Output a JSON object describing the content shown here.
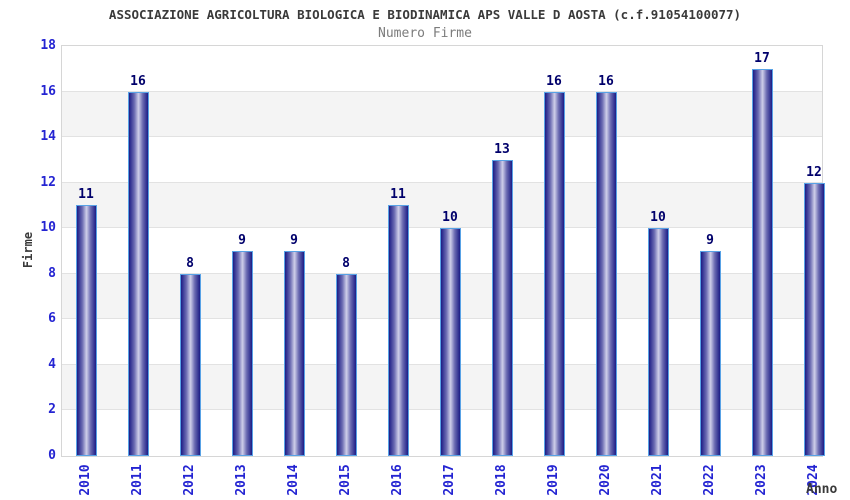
{
  "chart_data": {
    "type": "bar",
    "title": "ASSOCIAZIONE AGRICOLTURA BIOLOGICA E BIODINAMICA APS VALLE D AOSTA (c.f.91054100077)",
    "subtitle": "Numero Firme",
    "xlabel": "Anno",
    "ylabel": "Firme",
    "categories": [
      "2010",
      "2011",
      "2012",
      "2013",
      "2014",
      "2015",
      "2016",
      "2017",
      "2018",
      "2019",
      "2020",
      "2021",
      "2022",
      "2023",
      "2024"
    ],
    "values": [
      11,
      16,
      8,
      9,
      9,
      8,
      11,
      10,
      13,
      16,
      16,
      10,
      9,
      17,
      12
    ],
    "ylim": [
      0,
      18
    ],
    "yticks": [
      0,
      2,
      4,
      6,
      8,
      10,
      12,
      14,
      16,
      18
    ],
    "grid": "horizontal-bands",
    "legend": "none",
    "colors": {
      "bar_edge": "#58a2e6",
      "bar_dark": "#1c1c85",
      "bar_mid": "#6b6bb2",
      "bar_light": "#cfcfe9",
      "value_label": "#00006b",
      "tick_label": "#2424d2",
      "title": "#3a3a3a",
      "subtitle": "#7c7c7c",
      "band_gray": "#f4f4f4",
      "band_white": "#ffffff",
      "gridline": "#e2e2e2",
      "plot_border": "#d6d6d6"
    }
  }
}
